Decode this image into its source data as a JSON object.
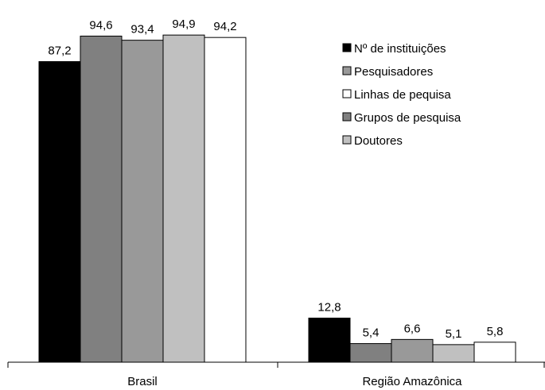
{
  "chart_data": {
    "type": "bar",
    "categories": [
      "Brasil",
      "Região Amazônica"
    ],
    "ylim": [
      0,
      100
    ],
    "grid": false,
    "legend_placement": "top-right",
    "series": [
      {
        "name": "Nº de instituições",
        "color": "#000000",
        "values": [
          87.2,
          12.8
        ],
        "labels": [
          "87,2",
          "12,8"
        ]
      },
      {
        "name": "Grupos de pesquisa",
        "color": "#808080",
        "values": [
          94.6,
          5.4
        ],
        "labels": [
          "94,6",
          "5,4"
        ]
      },
      {
        "name": "Pesquisadores",
        "color": "#999999",
        "values": [
          93.4,
          6.6
        ],
        "labels": [
          "93,4",
          "6,6"
        ]
      },
      {
        "name": "Doutores",
        "color": "#c0c0c0",
        "values": [
          94.9,
          5.1
        ],
        "labels": [
          "94,9",
          "5,1"
        ]
      },
      {
        "name": "Linhas de pequisa",
        "color": "#ffffff",
        "values": [
          94.2,
          5.8
        ],
        "labels": [
          "94,2",
          "5,8"
        ]
      }
    ],
    "legend_order": [
      "Nº de instituições",
      "Pesquisadores",
      "Linhas de pequisa",
      "Grupos de pesquisa",
      "Doutores"
    ]
  }
}
